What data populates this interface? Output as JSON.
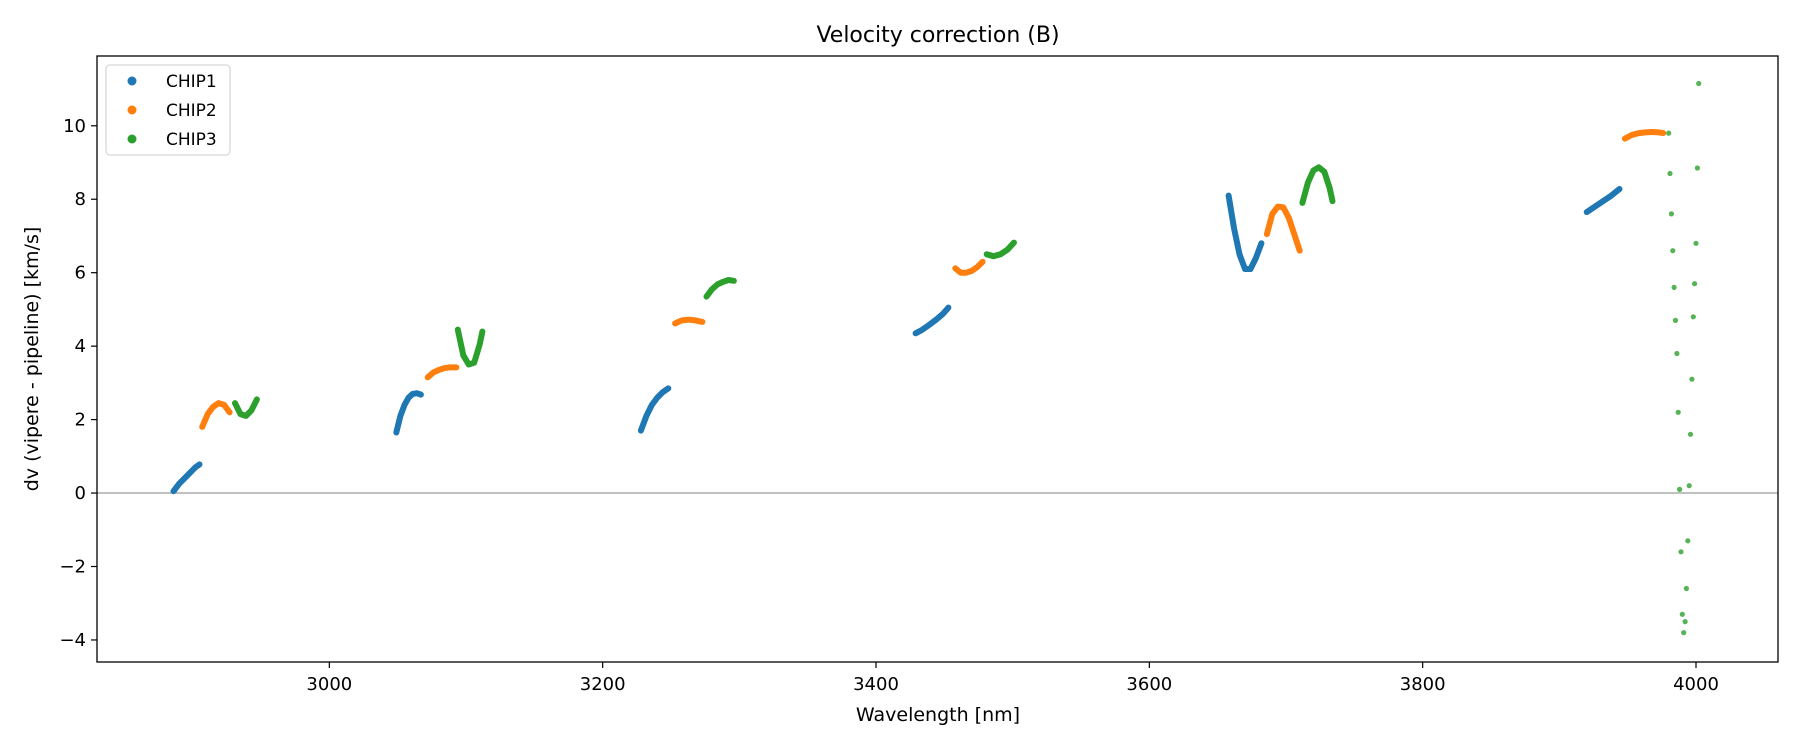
{
  "chart_data": {
    "type": "scatter",
    "title": "Velocity correction (B)",
    "xlabel": "Wavelength [nm]",
    "ylabel": "dv (vipere - pipeline) [km/s]",
    "xlim": [
      2830,
      4060
    ],
    "ylim": [
      -4.6,
      11.9
    ],
    "xticks": [
      3000,
      3200,
      3400,
      3600,
      3800,
      4000
    ],
    "yticks": [
      -4,
      -2,
      0,
      2,
      4,
      6,
      8,
      10
    ],
    "ytick_labels": [
      "−4",
      "−2",
      "0",
      "2",
      "4",
      "6",
      "8",
      "10"
    ],
    "xtick_labels": [
      "3000",
      "3200",
      "3400",
      "3600",
      "3800",
      "4000"
    ],
    "reference_line_y": 0,
    "legend_position": "upper-left",
    "series": [
      {
        "name": "CHIP1",
        "color": "#1f77b4",
        "segments": [
          {
            "x": [
              2886,
              2890,
              2894,
              2898,
              2902,
              2905
            ],
            "y": [
              0.05,
              0.25,
              0.4,
              0.55,
              0.7,
              0.78
            ]
          },
          {
            "x": [
              3049,
              3052,
              3055,
              3058,
              3061,
              3064,
              3067
            ],
            "y": [
              1.65,
              2.1,
              2.4,
              2.6,
              2.7,
              2.72,
              2.68
            ]
          },
          {
            "x": [
              3228,
              3232,
              3236,
              3240,
              3244,
              3248
            ],
            "y": [
              1.7,
              2.1,
              2.4,
              2.6,
              2.75,
              2.85
            ]
          },
          {
            "x": [
              3429,
              3434,
              3439,
              3444,
              3449,
              3453
            ],
            "y": [
              4.35,
              4.45,
              4.58,
              4.72,
              4.88,
              5.05
            ]
          },
          {
            "x": [
              3658,
              3662,
              3666,
              3670,
              3674,
              3678,
              3682
            ],
            "y": [
              8.1,
              7.2,
              6.5,
              6.1,
              6.1,
              6.4,
              6.8
            ]
          },
          {
            "x": [
              3920,
              3926,
              3932,
              3938,
              3944
            ],
            "y": [
              7.65,
              7.8,
              7.95,
              8.1,
              8.28
            ]
          }
        ]
      },
      {
        "name": "CHIP2",
        "color": "#ff7f0e",
        "segments": [
          {
            "x": [
              2907,
              2911,
              2915,
              2919,
              2923,
              2927
            ],
            "y": [
              1.8,
              2.15,
              2.35,
              2.45,
              2.4,
              2.2
            ]
          },
          {
            "x": [
              3072,
              3076,
              3080,
              3084,
              3088,
              3093
            ],
            "y": [
              3.15,
              3.28,
              3.35,
              3.4,
              3.42,
              3.42
            ]
          },
          {
            "x": [
              3253,
              3258,
              3263,
              3268,
              3273
            ],
            "y": [
              4.62,
              4.7,
              4.72,
              4.7,
              4.66
            ]
          },
          {
            "x": [
              3458,
              3462,
              3466,
              3470,
              3474,
              3478
            ],
            "y": [
              6.12,
              6.0,
              6.0,
              6.05,
              6.15,
              6.3
            ]
          },
          {
            "x": [
              3686,
              3690,
              3694,
              3698,
              3702,
              3706,
              3710
            ],
            "y": [
              7.05,
              7.6,
              7.8,
              7.78,
              7.5,
              7.05,
              6.6
            ]
          },
          {
            "x": [
              3948,
              3953,
              3958,
              3963,
              3968,
              3973,
              3976
            ],
            "y": [
              9.65,
              9.75,
              9.8,
              9.82,
              9.83,
              9.82,
              9.8
            ]
          }
        ]
      },
      {
        "name": "CHIP3",
        "color": "#2ca02c",
        "segments": [
          {
            "x": [
              2931,
              2935,
              2939,
              2943,
              2947
            ],
            "y": [
              2.45,
              2.15,
              2.1,
              2.25,
              2.55
            ]
          },
          {
            "x": [
              3094,
              3098,
              3102,
              3106,
              3110,
              3112
            ],
            "y": [
              4.45,
              3.75,
              3.5,
              3.55,
              4.05,
              4.4
            ]
          },
          {
            "x": [
              3276,
              3280,
              3284,
              3288,
              3292,
              3296
            ],
            "y": [
              5.35,
              5.55,
              5.68,
              5.75,
              5.8,
              5.78
            ]
          },
          {
            "x": [
              3481,
              3486,
              3491,
              3496,
              3501
            ],
            "y": [
              6.5,
              6.45,
              6.5,
              6.62,
              6.82
            ]
          },
          {
            "x": [
              3712,
              3716,
              3720,
              3724,
              3728,
              3732,
              3734
            ],
            "y": [
              7.9,
              8.45,
              8.78,
              8.87,
              8.75,
              8.3,
              7.95
            ]
          },
          {
            "x": [
              3980,
              3981,
              3982,
              3983,
              3984,
              3985,
              3986,
              3987,
              3988,
              3989,
              3990,
              3991,
              3992,
              3993,
              3994,
              3995,
              3996,
              3997,
              3998,
              3999,
              4000,
              4001,
              4002
            ],
            "y": [
              9.8,
              8.7,
              7.6,
              6.6,
              5.6,
              4.7,
              3.8,
              2.2,
              0.1,
              -1.6,
              -3.3,
              -3.8,
              -3.5,
              -2.6,
              -1.3,
              0.2,
              1.6,
              3.1,
              4.8,
              5.7,
              6.8,
              8.85,
              11.15
            ],
            "sparse": true
          }
        ]
      }
    ]
  }
}
